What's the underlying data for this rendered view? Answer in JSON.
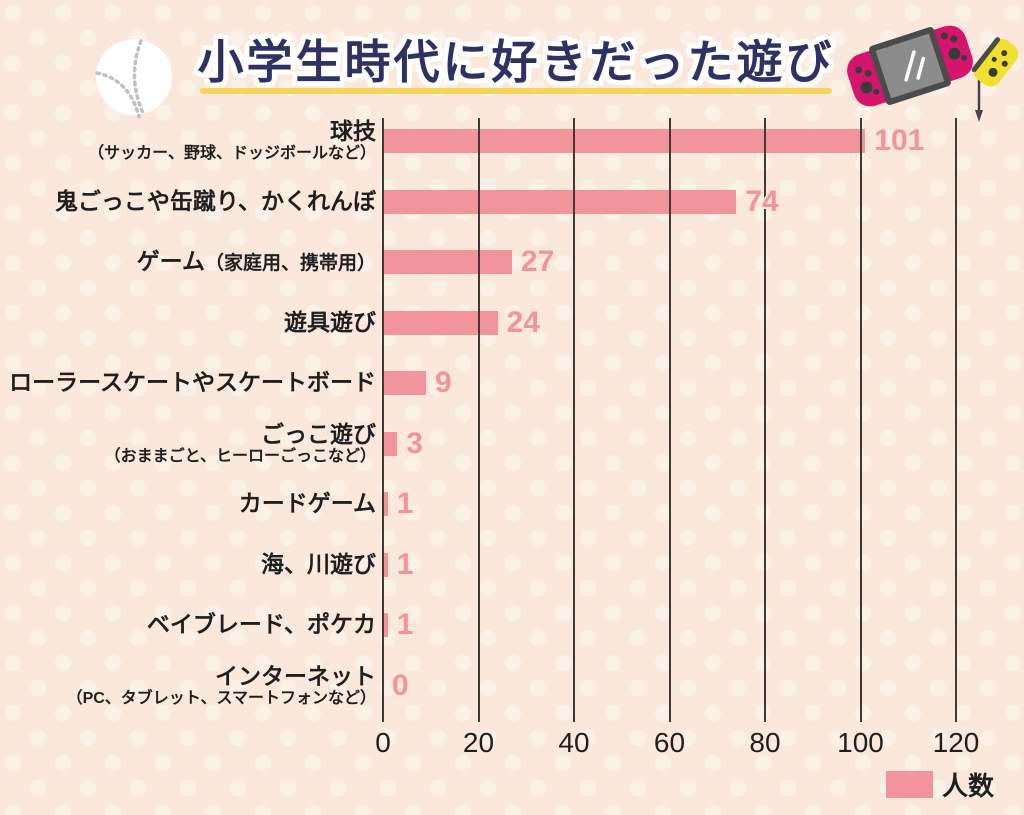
{
  "title": {
    "text": "小学生時代に好きだった遊び"
  },
  "legend": {
    "label": "人数",
    "swatch_color": "#F2949C",
    "position": "bottom-right"
  },
  "icons": {
    "baseball": "white baseball with gray stitches",
    "game_console": "pink handheld game console with gray screen",
    "joycon": "yellow joy-con controller with hanging strap"
  },
  "colors": {
    "background": "#FBE8DC",
    "dot": "#FCF1E7",
    "bar": "#F2949C",
    "grid": "#3E3A36",
    "title": "#2D3263",
    "underline": "#F5D462",
    "console_magenta": "#D4156B",
    "joycon_yellow": "#EFE12D",
    "text": "#1F1F1F"
  },
  "chart_data": {
    "type": "bar",
    "orientation": "horizontal",
    "title": "小学生時代に好きだった遊び",
    "series_name": "人数",
    "categories": [
      {
        "label": "球技",
        "sublabel": "（サッカー、野球、ドッジボールなど）",
        "sublabel_layout": "below"
      },
      {
        "label": "鬼ごっこや缶蹴り、かくれんぼ",
        "sublabel": "",
        "sublabel_layout": "none"
      },
      {
        "label": "ゲーム",
        "sublabel": "（家庭用、携帯用）",
        "sublabel_layout": "inline"
      },
      {
        "label": "遊具遊び",
        "sublabel": "",
        "sublabel_layout": "none"
      },
      {
        "label": "ローラースケートやスケートボード",
        "sublabel": "",
        "sublabel_layout": "none"
      },
      {
        "label": "ごっこ遊び",
        "sublabel": "（おままごと、ヒーローごっこなど）",
        "sublabel_layout": "below"
      },
      {
        "label": "カードゲーム",
        "sublabel": "",
        "sublabel_layout": "none"
      },
      {
        "label": "海、川遊び",
        "sublabel": "",
        "sublabel_layout": "none"
      },
      {
        "label": "ベイブレード、ポケカ",
        "sublabel": "",
        "sublabel_layout": "none"
      },
      {
        "label": "インターネット",
        "sublabel": "（PC、タブレット、スマートフォンなど）",
        "sublabel_layout": "below"
      }
    ],
    "values": [
      101,
      74,
      27,
      24,
      9,
      3,
      1,
      1,
      1,
      0
    ],
    "xlim": [
      0,
      120
    ],
    "xticks": [
      0,
      20,
      40,
      60,
      80,
      100,
      120
    ],
    "grid": "vertical",
    "legend_position": "bottom-right",
    "bar_color": "#F2949C"
  }
}
